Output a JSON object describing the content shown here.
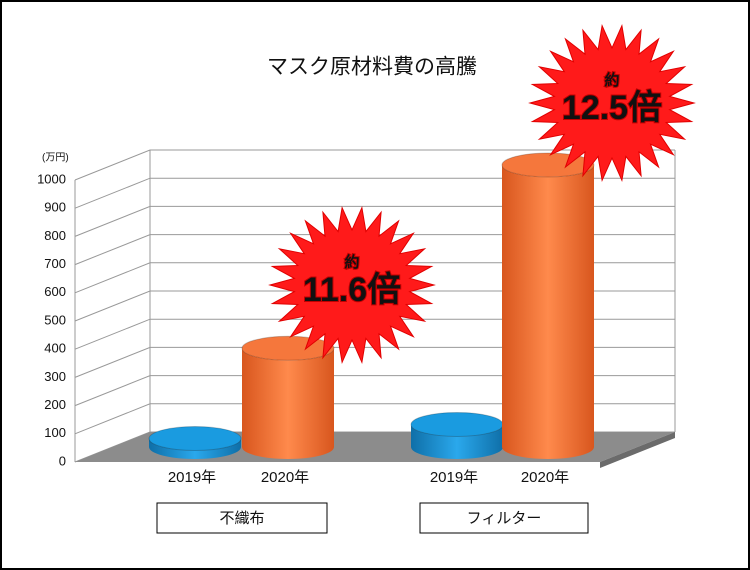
{
  "chart_data": {
    "type": "bar3d",
    "title": "マスク原材料費の高騰",
    "y_unit": "(万円)",
    "groups": [
      "不織布",
      "フィルター"
    ],
    "subcategories": [
      "2019年",
      "2020年"
    ],
    "colors": [
      "#1a9be0",
      "#f5773c"
    ],
    "values": [
      [
        30,
        350
      ],
      [
        80,
        1000
      ]
    ],
    "ylim": [
      0,
      1000
    ],
    "yticks": [
      0,
      100,
      200,
      300,
      400,
      500,
      600,
      700,
      800,
      900,
      1000
    ],
    "grid": true,
    "annotations": [
      {
        "prefix": "約",
        "text": "11.6倍"
      },
      {
        "prefix": "約",
        "text": "12.5倍"
      }
    ]
  }
}
